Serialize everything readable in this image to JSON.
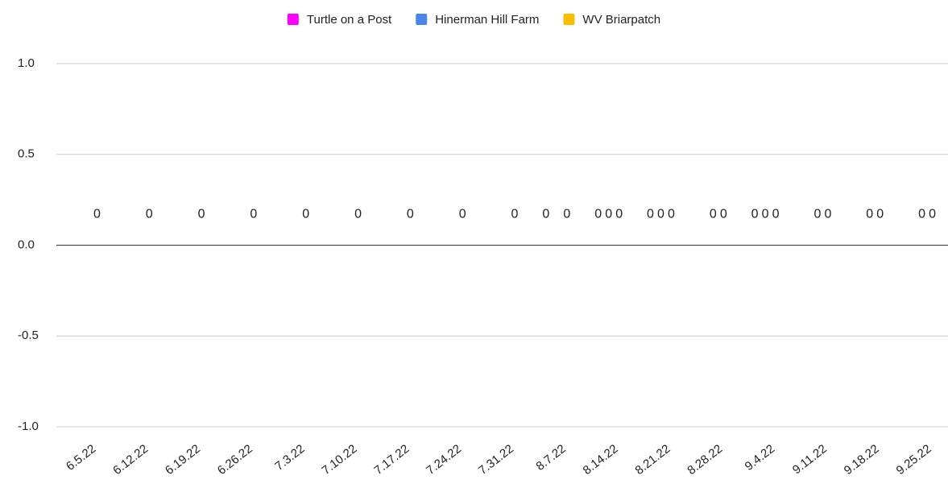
{
  "chart_data": {
    "type": "bar",
    "categories": [
      "6.5.22",
      "6.12.22",
      "6.19.22",
      "6.26.22",
      "7.3.22",
      "7.10.22",
      "7.17.22",
      "7.24.22",
      "7.31.22",
      "8.7.22",
      "8.14.22",
      "8.21.22",
      "8.28.22",
      "9.4.22",
      "9.11.22",
      "9.18.22",
      "9.25.22"
    ],
    "series": [
      {
        "name": "Turtle on a Post",
        "color": "#ff00ff",
        "values": [
          null,
          null,
          null,
          null,
          null,
          null,
          null,
          null,
          null,
          0,
          0,
          0,
          null,
          0,
          null,
          null,
          null
        ]
      },
      {
        "name": "Hinerman Hill Farm",
        "color": "#4a86e8",
        "values": [
          null,
          null,
          null,
          null,
          null,
          null,
          null,
          null,
          null,
          null,
          0,
          0,
          0,
          0,
          0,
          0,
          0
        ]
      },
      {
        "name": "WV Briarpatch",
        "color": "#fbbc04",
        "values": [
          0,
          0,
          0,
          0,
          0,
          0,
          0,
          0,
          0,
          0,
          0,
          0,
          0,
          0,
          0,
          0,
          0
        ]
      }
    ],
    "ylim": [
      -1,
      1
    ],
    "yticks": [
      {
        "value": -1,
        "label": "-1.0"
      },
      {
        "value": -0.5,
        "label": "-0.5"
      },
      {
        "value": 0,
        "label": "0.0"
      },
      {
        "value": 0.5,
        "label": "0.5"
      },
      {
        "value": 1,
        "label": "1.0"
      }
    ],
    "grid": true,
    "legend": "top"
  }
}
